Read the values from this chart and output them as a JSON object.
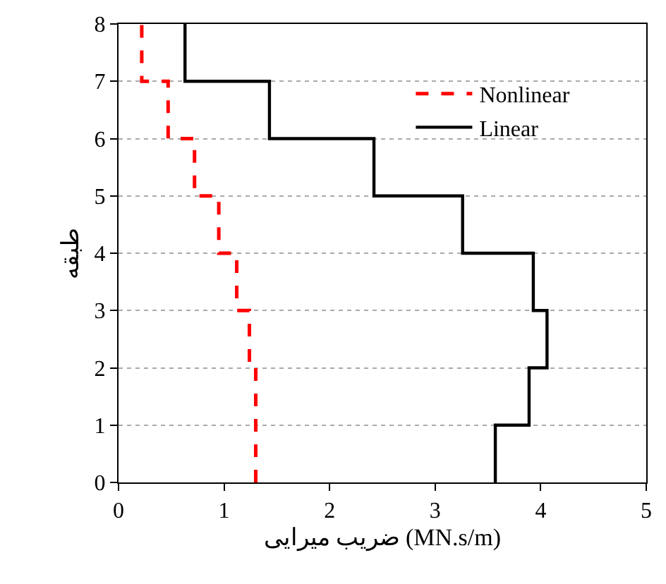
{
  "chart_data": {
    "type": "line",
    "xlabel": "ضریب میرایی (MN.s/m)",
    "ylabel": "طبقه",
    "xlim": [
      0,
      5
    ],
    "xticks": [
      0,
      1,
      2,
      3,
      4,
      5
    ],
    "ylim": [
      0,
      8
    ],
    "yticks": [
      0,
      1,
      2,
      3,
      4,
      5,
      6,
      7,
      8
    ],
    "grid": "y",
    "legend": "top right",
    "marker": "none",
    "series": [
      {
        "name": "Nonlinear",
        "color": "#ff0000",
        "line_style": "dashed",
        "x": [
          1.3,
          1.3,
          1.24,
          1.24,
          1.12,
          1.12,
          0.95,
          0.95,
          0.72,
          0.72,
          0.47,
          0.47,
          0.22,
          0.22
        ],
        "values": [
          0,
          2,
          2,
          3,
          3,
          4,
          4,
          5,
          5,
          6,
          6,
          7,
          7,
          8
        ]
      },
      {
        "name": "Linear",
        "color": "#000000",
        "line_style": "solid",
        "x": [
          3.57,
          3.57,
          3.89,
          3.89,
          4.06,
          4.06,
          3.93,
          3.93,
          3.26,
          3.26,
          2.42,
          2.42,
          1.43,
          1.43,
          0.63,
          0.63
        ],
        "values": [
          0,
          1,
          1,
          2,
          2,
          3,
          3,
          4,
          4,
          5,
          5,
          6,
          6,
          7,
          7,
          8
        ]
      }
    ]
  }
}
